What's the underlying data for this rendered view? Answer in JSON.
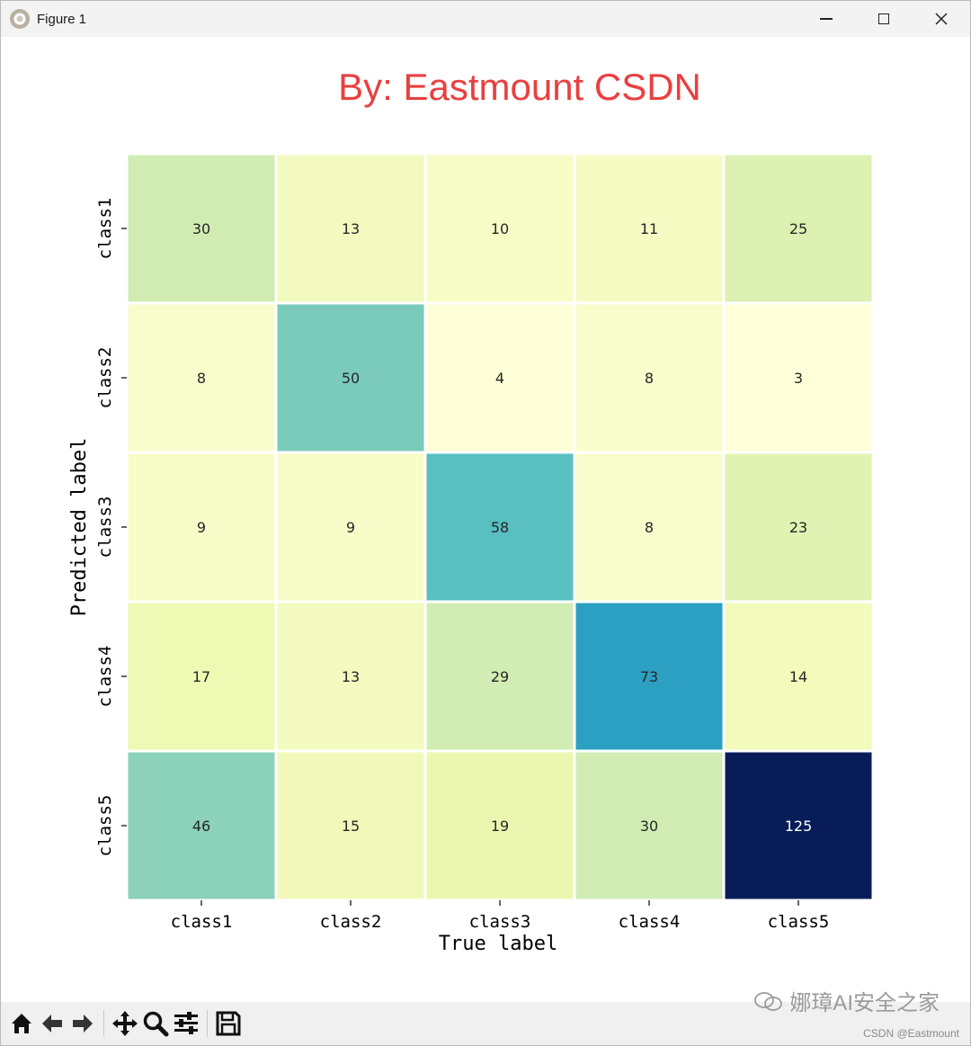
{
  "window": {
    "title": "Figure 1"
  },
  "chart_data": {
    "type": "heatmap",
    "title": "By:  Eastmount CSDN",
    "title_color": "#e8403f",
    "xlabel": "True label",
    "ylabel": "Predicted label",
    "x_categories": [
      "class1",
      "class2",
      "class3",
      "class4",
      "class5"
    ],
    "y_categories": [
      "class1",
      "class2",
      "class3",
      "class4",
      "class5"
    ],
    "values": [
      [
        30,
        13,
        10,
        11,
        25
      ],
      [
        8,
        50,
        4,
        8,
        3
      ],
      [
        9,
        9,
        58,
        8,
        23
      ],
      [
        17,
        13,
        29,
        73,
        14
      ],
      [
        46,
        15,
        19,
        30,
        125
      ]
    ],
    "colormap": "YlGnBu",
    "vmin": 3,
    "vmax": 125,
    "annotations": true,
    "legend": "none",
    "grid": false
  },
  "toolbar": {
    "buttons": [
      "home-icon",
      "back-icon",
      "forward-icon",
      "pan-icon",
      "zoom-icon",
      "configure-icon",
      "save-icon"
    ]
  },
  "watermark": {
    "text": "娜璋AI安全之家",
    "csdn": "CSDN @Eastmount"
  }
}
